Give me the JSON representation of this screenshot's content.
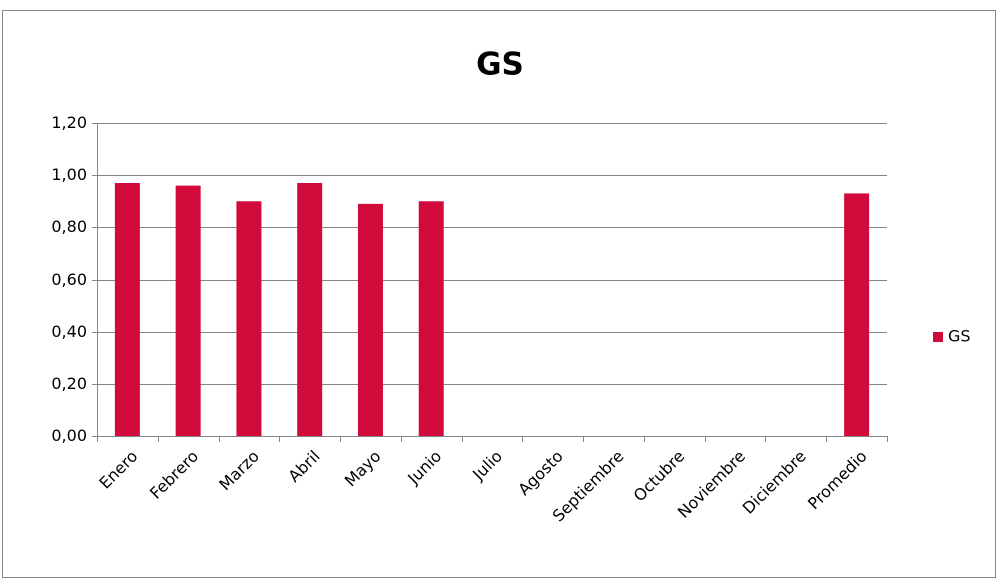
{
  "chart_data": {
    "type": "bar",
    "title": "GS",
    "categories": [
      "Enero",
      "Febrero",
      "Marzo",
      "Abril",
      "Mayo",
      "Junio",
      "Julio",
      "Agosto",
      "Septiembre",
      "Octubre",
      "Noviembre",
      "Diciembre",
      "Promedio"
    ],
    "series": [
      {
        "name": "GS",
        "color": "#d20a3c",
        "values": [
          0.97,
          0.96,
          0.9,
          0.97,
          0.89,
          0.9,
          null,
          null,
          null,
          null,
          null,
          null,
          0.93
        ]
      }
    ],
    "ylim": [
      0,
      1.2
    ],
    "yticks": [
      {
        "value": 0,
        "label": "0,00"
      },
      {
        "value": 0.2,
        "label": "0,20"
      },
      {
        "value": 0.4,
        "label": "0,40"
      },
      {
        "value": 0.6,
        "label": "0,60"
      },
      {
        "value": 0.8,
        "label": "0,80"
      },
      {
        "value": 1.0,
        "label": "1,00"
      },
      {
        "value": 1.2,
        "label": "1,20"
      }
    ],
    "grid": true,
    "legend": "right"
  }
}
